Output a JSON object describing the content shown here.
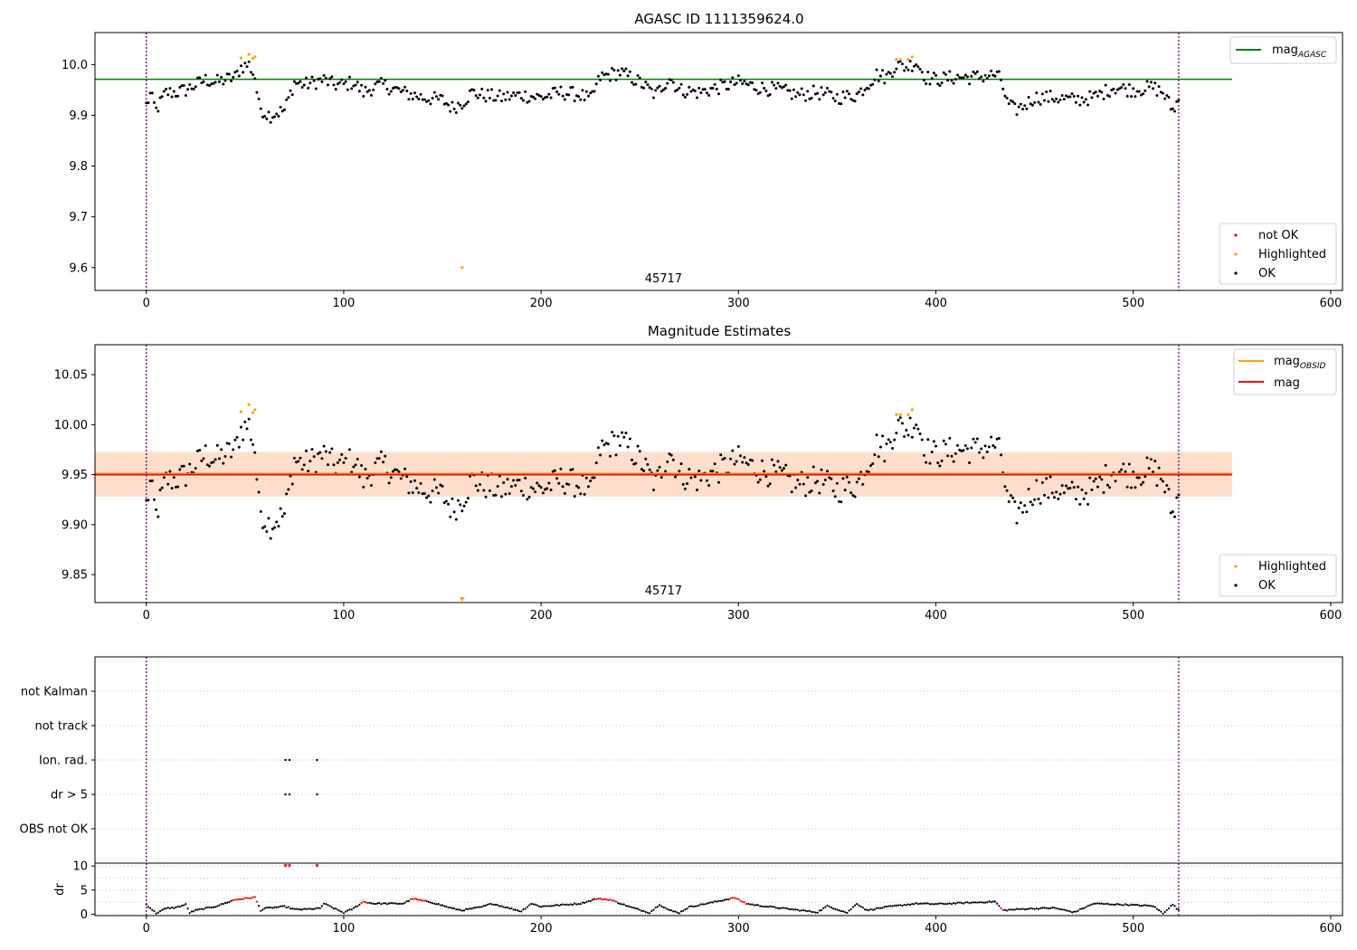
{
  "chart_data": [
    {
      "type": "scatter",
      "title": "AGASC ID 1111359624.0",
      "xlim": [
        -26,
        606
      ],
      "ylim": [
        9.555,
        10.063
      ],
      "xticks": [
        0,
        100,
        200,
        300,
        400,
        500,
        600
      ],
      "yticks": [
        9.6,
        9.7,
        9.8,
        9.9,
        10.0
      ],
      "ytick_labels": [
        "9.6",
        "9.7",
        "9.8",
        "9.9",
        "10.0"
      ],
      "grid": false,
      "obsid_label": "45717",
      "obsid_label_x": 262,
      "obs_bounds": [
        0,
        523
      ],
      "hlines": [
        {
          "name": "mag_AGASC",
          "y": 9.971,
          "color": "#008000",
          "x_range": [
            -26,
            550
          ]
        }
      ],
      "legend_lines": [
        {
          "label": "mag",
          "subscript": "AGASC",
          "color": "#008000"
        }
      ],
      "legend_points": [
        {
          "label": "not OK",
          "color": "#ff0000"
        },
        {
          "label": "Highlighted",
          "color": "#ffa500"
        },
        {
          "label": "OK",
          "color": "#000000"
        }
      ],
      "legend_lines_position": "top-right",
      "legend_points_position": "lower-right",
      "series": [
        {
          "name": "OK",
          "color": "#000000",
          "source": "mag"
        },
        {
          "name": "Highlighted",
          "color": "#ffa500",
          "source": "mag_highlighted"
        },
        {
          "name": "not OK",
          "color": "#ff0000",
          "source": "none"
        }
      ],
      "outlier": {
        "x": 160,
        "y": 9.6,
        "color": "#ffa500"
      }
    },
    {
      "type": "scatter",
      "title": "Magnitude Estimates",
      "xlim": [
        -26,
        606
      ],
      "ylim": [
        9.822,
        10.08
      ],
      "xticks": [
        0,
        100,
        200,
        300,
        400,
        500,
        600
      ],
      "yticks": [
        9.85,
        9.9,
        9.95,
        10.0,
        10.05
      ],
      "ytick_labels": [
        "9.85",
        "9.90",
        "9.95",
        "10.00",
        "10.05"
      ],
      "grid": false,
      "obsid_label": "45717",
      "obsid_label_x": 262,
      "obs_bounds": [
        0,
        523
      ],
      "hlines": [
        {
          "name": "mag_OBSID",
          "y": 9.951,
          "color": "#ffa500",
          "x_range": [
            -26,
            550
          ]
        },
        {
          "name": "mag",
          "y": 9.95,
          "color": "#ff0000",
          "x_range": [
            -26,
            550
          ]
        }
      ],
      "bands": [
        {
          "name": "mag range",
          "y": [
            9.928,
            9.972
          ],
          "color": "#ffc0cb",
          "x_range": [
            -26,
            550
          ]
        },
        {
          "name": "mag_OBSID range",
          "y": [
            9.928,
            9.973
          ],
          "color": "#ffdab9",
          "x_range": [
            -26,
            550
          ]
        }
      ],
      "legend_lines": [
        {
          "label": "mag",
          "subscript": "OBSID",
          "color": "#ffa500"
        },
        {
          "label": "mag",
          "subscript": "",
          "color": "#ff0000"
        }
      ],
      "legend_points": [
        {
          "label": "Highlighted",
          "color": "#ffa500"
        },
        {
          "label": "OK",
          "color": "#000000"
        }
      ],
      "legend_lines_position": "top-right",
      "legend_points_position": "lower-right",
      "series": [
        {
          "name": "OK",
          "color": "#000000",
          "source": "mag"
        },
        {
          "name": "Highlighted",
          "color": "#ffa500",
          "source": "mag_highlighted"
        }
      ],
      "outlier": {
        "x": 160,
        "y": 9.822,
        "color": "#ffa500",
        "marker": "triangle-down"
      }
    },
    {
      "type": "scatter",
      "title": "",
      "xlim": [
        -26,
        606
      ],
      "xticks": [
        0,
        100,
        200,
        300,
        400,
        500,
        600
      ],
      "obs_bounds": [
        0,
        523
      ],
      "flag_rows": [
        "not Kalman",
        "not track",
        "Ion. rad.",
        "dr > 5",
        "OBS not OK"
      ],
      "flag_points": [
        {
          "flag": "Ion. rad.",
          "x": [
            70.5,
            72.5,
            86.5
          ]
        },
        {
          "flag": "dr > 5",
          "x": [
            70.5,
            72.5,
            86.5
          ]
        }
      ],
      "grid": true
    },
    {
      "type": "scatter",
      "title": "",
      "ylabel": "dr",
      "xlim": [
        -26,
        606
      ],
      "ylim": [
        -0.3,
        10.6
      ],
      "xticks": [
        0,
        100,
        200,
        300,
        400,
        500,
        600
      ],
      "yticks": [
        0,
        5,
        10
      ],
      "obs_bounds": [
        0,
        523
      ],
      "series": [
        {
          "name": "dr",
          "color": "#000000"
        },
        {
          "name": "dr flagged",
          "color": "#ff0000"
        }
      ],
      "flagged_x": [
        70.5,
        72.5,
        86.5
      ],
      "flagged_y": 10,
      "red_ranges": [
        [
          44,
          56
        ],
        [
          109,
          112
        ],
        [
          134,
          141
        ],
        [
          228,
          238
        ],
        [
          296,
          304
        ],
        [
          433,
          434
        ]
      ],
      "grid": true
    }
  ],
  "mag_series": {
    "description": "",
    "x_start": 0,
    "x_step": 1,
    "keypoints_x": [
      0,
      2,
      5,
      10,
      15,
      20,
      25,
      30,
      35,
      40,
      45,
      48,
      52,
      55,
      57,
      60,
      63,
      66,
      70,
      75,
      80,
      85,
      90,
      95,
      100,
      105,
      110,
      115,
      120,
      130,
      140,
      150,
      155,
      160,
      165,
      170,
      180,
      190,
      200,
      210,
      220,
      225,
      230,
      235,
      240,
      250,
      258,
      265,
      270,
      280,
      290,
      300,
      310,
      320,
      330,
      340,
      350,
      360,
      365,
      370,
      375,
      380,
      385,
      390,
      395,
      400,
      410,
      420,
      430,
      433,
      436,
      440,
      445,
      450,
      460,
      470,
      480,
      490,
      500,
      510,
      515,
      520,
      523
    ],
    "keypoints_y": [
      9.92,
      9.94,
      9.91,
      9.945,
      9.945,
      9.95,
      9.96,
      9.97,
      9.965,
      9.97,
      9.975,
      9.995,
      10.0,
      9.975,
      9.92,
      9.905,
      9.9,
      9.905,
      9.91,
      9.965,
      9.96,
      9.965,
      9.97,
      9.96,
      9.96,
      9.965,
      9.945,
      9.955,
      9.96,
      9.945,
      9.935,
      9.93,
      9.915,
      9.925,
      9.945,
      9.94,
      9.935,
      9.94,
      9.935,
      9.945,
      9.94,
      9.93,
      9.975,
      9.98,
      9.985,
      9.965,
      9.94,
      9.975,
      9.95,
      9.945,
      9.955,
      9.965,
      9.955,
      9.95,
      9.94,
      9.945,
      9.935,
      9.94,
      9.96,
      9.98,
      9.975,
      10.0,
      9.995,
      10.005,
      9.975,
      9.97,
      9.975,
      9.975,
      9.98,
      9.97,
      9.925,
      9.91,
      9.92,
      9.935,
      9.935,
      9.93,
      9.935,
      9.955,
      9.95,
      9.955,
      9.945,
      9.91,
      9.93
    ]
  },
  "mag_highlighted": {
    "x": [
      48,
      52,
      54,
      55,
      380,
      382,
      386,
      388
    ],
    "y": [
      10.013,
      10.02,
      10.012,
      10.015,
      10.01,
      10.01,
      10.01,
      10.015
    ]
  },
  "dr_series": {
    "keypoints_x": [
      0,
      5,
      10,
      15,
      20,
      22,
      25,
      35,
      45,
      55,
      58,
      60,
      70,
      75,
      80,
      88,
      90,
      100,
      105,
      110,
      115,
      130,
      135,
      145,
      155,
      160,
      170,
      175,
      190,
      195,
      200,
      220,
      228,
      235,
      245,
      255,
      260,
      265,
      270,
      275,
      285,
      298,
      304,
      310,
      340,
      345,
      355,
      360,
      365,
      375,
      390,
      400,
      430,
      434,
      445,
      460,
      470,
      480,
      500,
      510,
      515,
      520,
      523
    ],
    "keypoints_y": [
      2,
      0.2,
      1.2,
      1.4,
      2,
      0.3,
      0.8,
      1.6,
      3,
      3.5,
      0.8,
      1.2,
      1.6,
      1.0,
      1.0,
      1.2,
      2.2,
      0.3,
      1.2,
      2.6,
      2.2,
      2.2,
      3.2,
      2.4,
      1.2,
      0.8,
      1.5,
      2.2,
      0.6,
      2.2,
      1.6,
      2.2,
      3.2,
      3.0,
      1.5,
      0.3,
      2.0,
      0.8,
      0.3,
      1.5,
      2.3,
      3.4,
      2.2,
      1.8,
      0.4,
      1.7,
      0.3,
      2.2,
      0.8,
      1.5,
      2.2,
      2.1,
      2.6,
      0.8,
      1.1,
      1.3,
      0.4,
      2.2,
      1.9,
      1.7,
      0.2,
      2.0,
      0.8
    ]
  }
}
